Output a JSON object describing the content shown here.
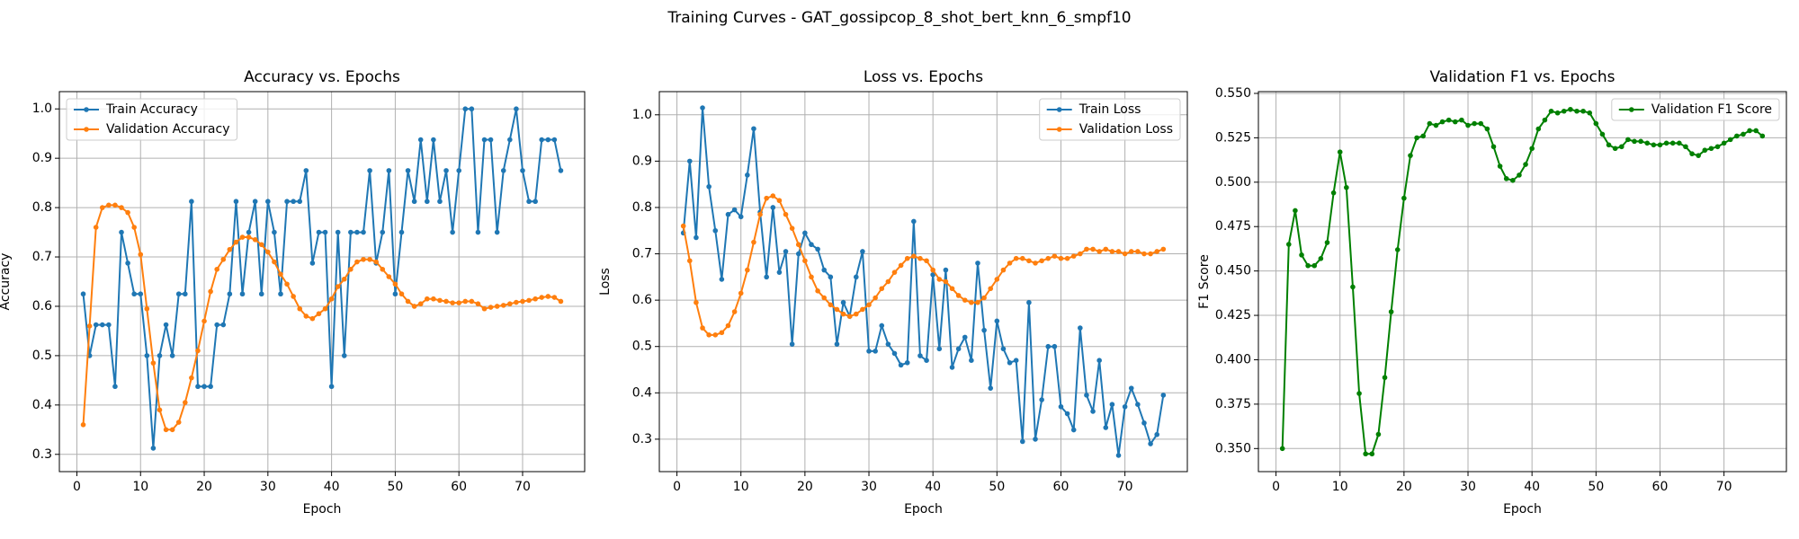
{
  "title": "Training Curves - GAT_gossipcop_8_shot_bert_knn_6_smpf10",
  "chart_data": [
    {
      "type": "line",
      "title": "Accuracy vs. Epochs",
      "x_label": "Epoch",
      "y_label": "Accuracy",
      "grid": true,
      "legend": "upper left",
      "x": [
        1,
        2,
        3,
        4,
        5,
        6,
        7,
        8,
        9,
        10,
        11,
        12,
        13,
        14,
        15,
        16,
        17,
        18,
        19,
        20,
        21,
        22,
        23,
        24,
        25,
        26,
        27,
        28,
        29,
        30,
        31,
        32,
        33,
        34,
        35,
        36,
        37,
        38,
        39,
        40,
        41,
        42,
        43,
        44,
        45,
        46,
        47,
        48,
        49,
        50,
        51,
        52,
        53,
        54,
        55,
        56,
        57,
        58,
        59,
        60,
        61,
        62,
        63,
        64,
        65,
        66,
        67,
        68,
        69,
        70,
        71,
        72,
        73,
        74,
        75,
        76
      ],
      "xlim": [
        -2.75,
        79.75
      ],
      "xticks": [
        0,
        10,
        20,
        30,
        40,
        50,
        60,
        70
      ],
      "ylim": [
        0.265,
        1.035
      ],
      "yticks": [
        0.3,
        0.4,
        0.5,
        0.6,
        0.7,
        0.8,
        0.9,
        {
          "value": 1,
          "label": "1.0"
        }
      ],
      "series": [
        {
          "name": "Train Accuracy",
          "color": "#1f77b4",
          "values": [
            0.625,
            0.5,
            0.5625,
            0.5625,
            0.5625,
            0.4375,
            0.75,
            0.6875,
            0.625,
            0.625,
            0.5,
            0.3125,
            0.5,
            0.5625,
            0.5,
            0.625,
            0.625,
            0.8125,
            0.4375,
            0.4375,
            0.4375,
            0.5625,
            0.5625,
            0.625,
            0.8125,
            0.625,
            0.75,
            0.8125,
            0.625,
            0.8125,
            0.75,
            0.625,
            0.8125,
            0.8125,
            0.8125,
            0.875,
            0.6875,
            0.75,
            0.75,
            0.4375,
            0.75,
            0.5,
            0.75,
            0.75,
            0.75,
            0.875,
            0.6875,
            0.75,
            0.875,
            0.625,
            0.75,
            0.875,
            0.8125,
            0.9375,
            0.8125,
            0.9375,
            0.8125,
            0.875,
            0.75,
            0.875,
            1.0,
            1.0,
            0.75,
            0.9375,
            0.9375,
            0.75,
            0.875,
            0.9375,
            1.0,
            0.875,
            0.8125,
            0.8125,
            0.9375,
            0.9375,
            0.9375,
            0.875
          ]
        },
        {
          "name": "Validation Accuracy",
          "color": "#ff7f0e",
          "values": [
            0.36,
            0.56,
            0.76,
            0.8,
            0.805,
            0.805,
            0.8,
            0.79,
            0.76,
            0.705,
            0.595,
            0.485,
            0.39,
            0.35,
            0.35,
            0.365,
            0.405,
            0.455,
            0.51,
            0.57,
            0.63,
            0.675,
            0.695,
            0.715,
            0.73,
            0.74,
            0.74,
            0.735,
            0.725,
            0.71,
            0.69,
            0.665,
            0.645,
            0.62,
            0.595,
            0.58,
            0.575,
            0.585,
            0.595,
            0.615,
            0.64,
            0.655,
            0.675,
            0.69,
            0.695,
            0.695,
            0.69,
            0.675,
            0.66,
            0.645,
            0.625,
            0.61,
            0.6,
            0.605,
            0.615,
            0.615,
            0.612,
            0.61,
            0.607,
            0.607,
            0.61,
            0.61,
            0.605,
            0.595,
            0.598,
            0.6,
            0.602,
            0.605,
            0.608,
            0.61,
            0.612,
            0.615,
            0.618,
            0.62,
            0.618,
            0.61
          ]
        }
      ]
    },
    {
      "type": "line",
      "title": "Loss vs. Epochs",
      "x_label": "Epoch",
      "y_label": "Loss",
      "grid": true,
      "legend": "upper right",
      "x": [
        1,
        2,
        3,
        4,
        5,
        6,
        7,
        8,
        9,
        10,
        11,
        12,
        13,
        14,
        15,
        16,
        17,
        18,
        19,
        20,
        21,
        22,
        23,
        24,
        25,
        26,
        27,
        28,
        29,
        30,
        31,
        32,
        33,
        34,
        35,
        36,
        37,
        38,
        39,
        40,
        41,
        42,
        43,
        44,
        45,
        46,
        47,
        48,
        49,
        50,
        51,
        52,
        53,
        54,
        55,
        56,
        57,
        58,
        59,
        60,
        61,
        62,
        63,
        64,
        65,
        66,
        67,
        68,
        69,
        70,
        71,
        72,
        73,
        74,
        75,
        76
      ],
      "xlim": [
        -2.75,
        79.75
      ],
      "xticks": [
        0,
        10,
        20,
        30,
        40,
        50,
        60,
        70
      ],
      "ylim": [
        0.23,
        1.05
      ],
      "yticks": [
        0.3,
        0.4,
        0.5,
        0.6,
        0.7,
        0.8,
        0.9,
        {
          "value": 1,
          "label": "1.0"
        }
      ],
      "series": [
        {
          "name": "Train Loss",
          "color": "#1f77b4",
          "values": [
            0.745,
            0.9,
            0.735,
            1.015,
            0.845,
            0.75,
            0.645,
            0.785,
            0.795,
            0.78,
            0.87,
            0.97,
            0.79,
            0.65,
            0.8,
            0.66,
            0.705,
            0.505,
            0.7,
            0.745,
            0.72,
            0.71,
            0.665,
            0.65,
            0.505,
            0.595,
            0.565,
            0.65,
            0.705,
            0.49,
            0.49,
            0.545,
            0.505,
            0.485,
            0.46,
            0.465,
            0.77,
            0.48,
            0.47,
            0.655,
            0.495,
            0.665,
            0.455,
            0.495,
            0.52,
            0.47,
            0.68,
            0.535,
            0.41,
            0.555,
            0.495,
            0.465,
            0.47,
            0.295,
            0.595,
            0.3,
            0.385,
            0.5,
            0.5,
            0.37,
            0.355,
            0.32,
            0.54,
            0.395,
            0.36,
            0.47,
            0.325,
            0.375,
            0.265,
            0.37,
            0.41,
            0.375,
            0.335,
            0.29,
            0.31,
            0.395
          ]
        },
        {
          "name": "Validation Loss",
          "color": "#ff7f0e",
          "values": [
            0.76,
            0.685,
            0.595,
            0.54,
            0.525,
            0.525,
            0.53,
            0.545,
            0.575,
            0.615,
            0.665,
            0.725,
            0.785,
            0.82,
            0.825,
            0.815,
            0.785,
            0.755,
            0.72,
            0.685,
            0.65,
            0.62,
            0.605,
            0.59,
            0.58,
            0.57,
            0.565,
            0.57,
            0.58,
            0.59,
            0.605,
            0.625,
            0.64,
            0.66,
            0.675,
            0.69,
            0.695,
            0.69,
            0.685,
            0.665,
            0.645,
            0.64,
            0.625,
            0.61,
            0.6,
            0.595,
            0.595,
            0.605,
            0.625,
            0.645,
            0.665,
            0.68,
            0.69,
            0.69,
            0.685,
            0.68,
            0.685,
            0.69,
            0.695,
            0.69,
            0.69,
            0.695,
            0.7,
            0.71,
            0.71,
            0.705,
            0.71,
            0.705,
            0.705,
            0.7,
            0.705,
            0.705,
            0.7,
            0.7,
            0.705,
            0.71
          ]
        }
      ]
    },
    {
      "type": "line",
      "title": "Validation F1 vs. Epochs",
      "x_label": "Epoch",
      "y_label": "F1 Score",
      "grid": true,
      "legend": "upper right",
      "x": [
        1,
        2,
        3,
        4,
        5,
        6,
        7,
        8,
        9,
        10,
        11,
        12,
        13,
        14,
        15,
        16,
        17,
        18,
        19,
        20,
        21,
        22,
        23,
        24,
        25,
        26,
        27,
        28,
        29,
        30,
        31,
        32,
        33,
        34,
        35,
        36,
        37,
        38,
        39,
        40,
        41,
        42,
        43,
        44,
        45,
        46,
        47,
        48,
        49,
        50,
        51,
        52,
        53,
        54,
        55,
        56,
        57,
        58,
        59,
        60,
        61,
        62,
        63,
        64,
        65,
        66,
        67,
        68,
        69,
        70,
        71,
        72,
        73,
        74,
        75,
        76
      ],
      "xlim": [
        -2.75,
        79.75
      ],
      "xticks": [
        0,
        10,
        20,
        30,
        40,
        50,
        60,
        70
      ],
      "ylim": [
        0.337,
        0.551
      ],
      "yticks": [
        {
          "value": 0.35,
          "label": "0.350"
        },
        0.375,
        {
          "value": 0.4,
          "label": "0.400"
        },
        0.425,
        {
          "value": 0.45,
          "label": "0.450"
        },
        0.475,
        {
          "value": 0.5,
          "label": "0.500"
        },
        0.525,
        {
          "value": 0.55,
          "label": "0.550"
        }
      ],
      "series": [
        {
          "name": "Validation F1 Score",
          "color": "#008000",
          "values": [
            0.35,
            0.465,
            0.484,
            0.459,
            0.453,
            0.453,
            0.457,
            0.466,
            0.494,
            0.517,
            0.497,
            0.441,
            0.381,
            0.347,
            0.347,
            0.358,
            0.39,
            0.427,
            0.462,
            0.491,
            0.515,
            0.525,
            0.526,
            0.533,
            0.532,
            0.534,
            0.535,
            0.534,
            0.535,
            0.532,
            0.533,
            0.533,
            0.53,
            0.52,
            0.509,
            0.502,
            0.501,
            0.504,
            0.51,
            0.519,
            0.53,
            0.535,
            0.54,
            0.539,
            0.54,
            0.541,
            0.54,
            0.54,
            0.539,
            0.533,
            0.527,
            0.521,
            0.519,
            0.52,
            0.524,
            0.523,
            0.523,
            0.522,
            0.521,
            0.521,
            0.522,
            0.522,
            0.522,
            0.52,
            0.516,
            0.515,
            0.518,
            0.519,
            0.52,
            0.522,
            0.524,
            0.526,
            0.527,
            0.529,
            0.529,
            0.526
          ]
        }
      ]
    }
  ]
}
